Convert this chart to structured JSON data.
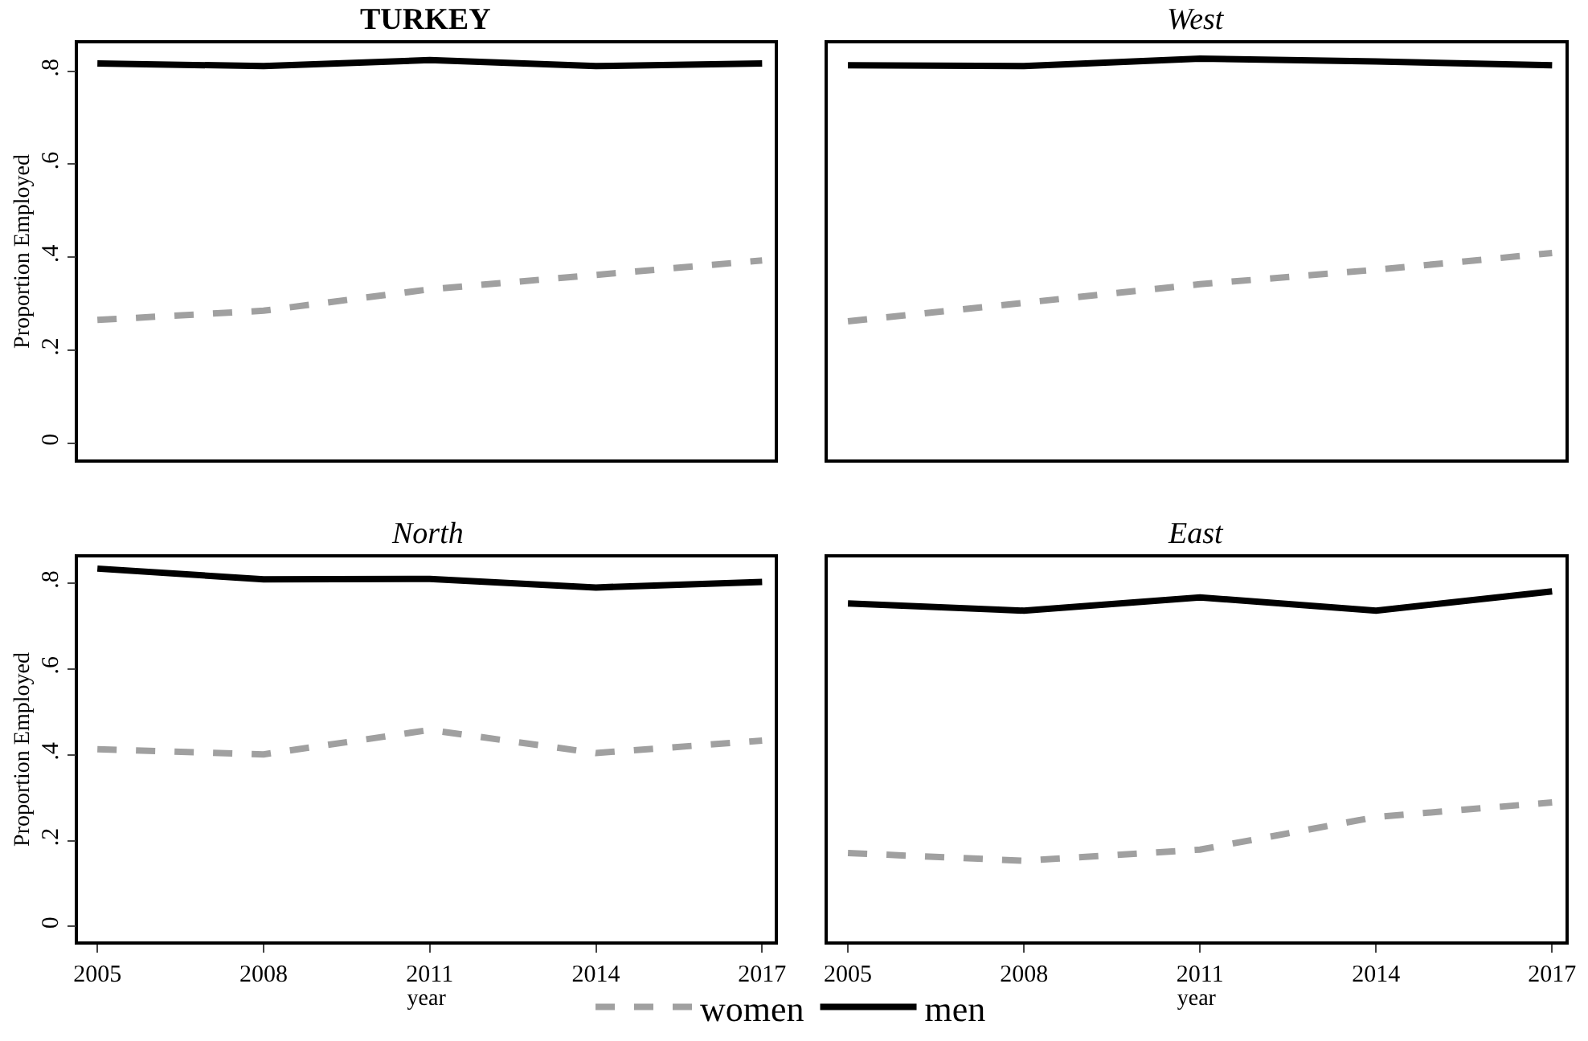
{
  "chart_data": [
    {
      "type": "line",
      "title": "TURKEY",
      "ylabel": "Proportion Employed",
      "x": [
        2005,
        2008,
        2011,
        2014,
        2017
      ],
      "xlim": [
        2004.65,
        2017.23
      ],
      "ylim": [
        -0.035,
        0.86
      ],
      "yticks": [
        0,
        {
          "value": 0.2,
          "label": ".2"
        },
        {
          "value": 0.4,
          "label": ".4"
        },
        {
          "value": 0.6,
          "label": ".6"
        },
        {
          "value": 0.8,
          "label": ".8"
        }
      ],
      "tick_labels": "y",
      "legend": "bottom",
      "marker": "none",
      "series": [
        {
          "name": "women",
          "color": "#a0a0a0",
          "line_style": "dashed",
          "values": [
            0.265,
            0.285,
            0.331,
            0.362,
            0.393
          ]
        },
        {
          "name": "men",
          "color": "#000000",
          "line_style": "solid",
          "values": [
            0.817,
            0.811,
            0.824,
            0.811,
            0.817
          ]
        }
      ]
    },
    {
      "type": "line",
      "title": "West",
      "x": [
        2005,
        2008,
        2011,
        2014,
        2017
      ],
      "xlim": [
        2004.65,
        2017.23
      ],
      "ylim": [
        -0.035,
        0.86
      ],
      "tick_labels": false,
      "marker": "none",
      "series": [
        {
          "color": "#a0a0a0",
          "line_style": "dashed",
          "values": [
            0.262,
            0.302,
            0.342,
            0.373,
            0.409
          ]
        },
        {
          "color": "#000000",
          "line_style": "solid",
          "values": [
            0.813,
            0.811,
            0.827,
            0.821,
            0.813
          ]
        }
      ]
    },
    {
      "type": "line",
      "title": "North",
      "xlabel": "year",
      "ylabel": "Proportion Employed",
      "x": [
        2005,
        2008,
        2011,
        2014,
        2017
      ],
      "xlim": [
        2004.65,
        2017.23
      ],
      "xticks": [
        2005,
        2008,
        2011,
        2014,
        2017
      ],
      "ylim": [
        -0.035,
        0.86
      ],
      "yticks": [
        0,
        {
          "value": 0.2,
          "label": ".2"
        },
        {
          "value": 0.4,
          "label": ".4"
        },
        {
          "value": 0.6,
          "label": ".6"
        },
        {
          "value": 0.8,
          "label": ".8"
        }
      ],
      "marker": "none",
      "series": [
        {
          "color": "#a0a0a0",
          "line_style": "dashed",
          "values": [
            0.413,
            0.401,
            0.458,
            0.404,
            0.433
          ]
        },
        {
          "color": "#000000",
          "line_style": "solid",
          "values": [
            0.834,
            0.809,
            0.81,
            0.79,
            0.803
          ]
        }
      ]
    },
    {
      "type": "line",
      "title": "East",
      "xlabel": "year",
      "x": [
        2005,
        2008,
        2011,
        2014,
        2017
      ],
      "xlim": [
        2004.65,
        2017.23
      ],
      "xticks": [
        2005,
        2008,
        2011,
        2014,
        2017
      ],
      "ylim": [
        -0.035,
        0.86
      ],
      "tick_labels": "x",
      "marker": "none",
      "series": [
        {
          "color": "#a0a0a0",
          "line_style": "dashed",
          "values": [
            0.171,
            0.153,
            0.179,
            0.255,
            0.289
          ]
        },
        {
          "color": "#000000",
          "line_style": "solid",
          "values": [
            0.753,
            0.736,
            0.767,
            0.736,
            0.781
          ]
        }
      ]
    }
  ]
}
